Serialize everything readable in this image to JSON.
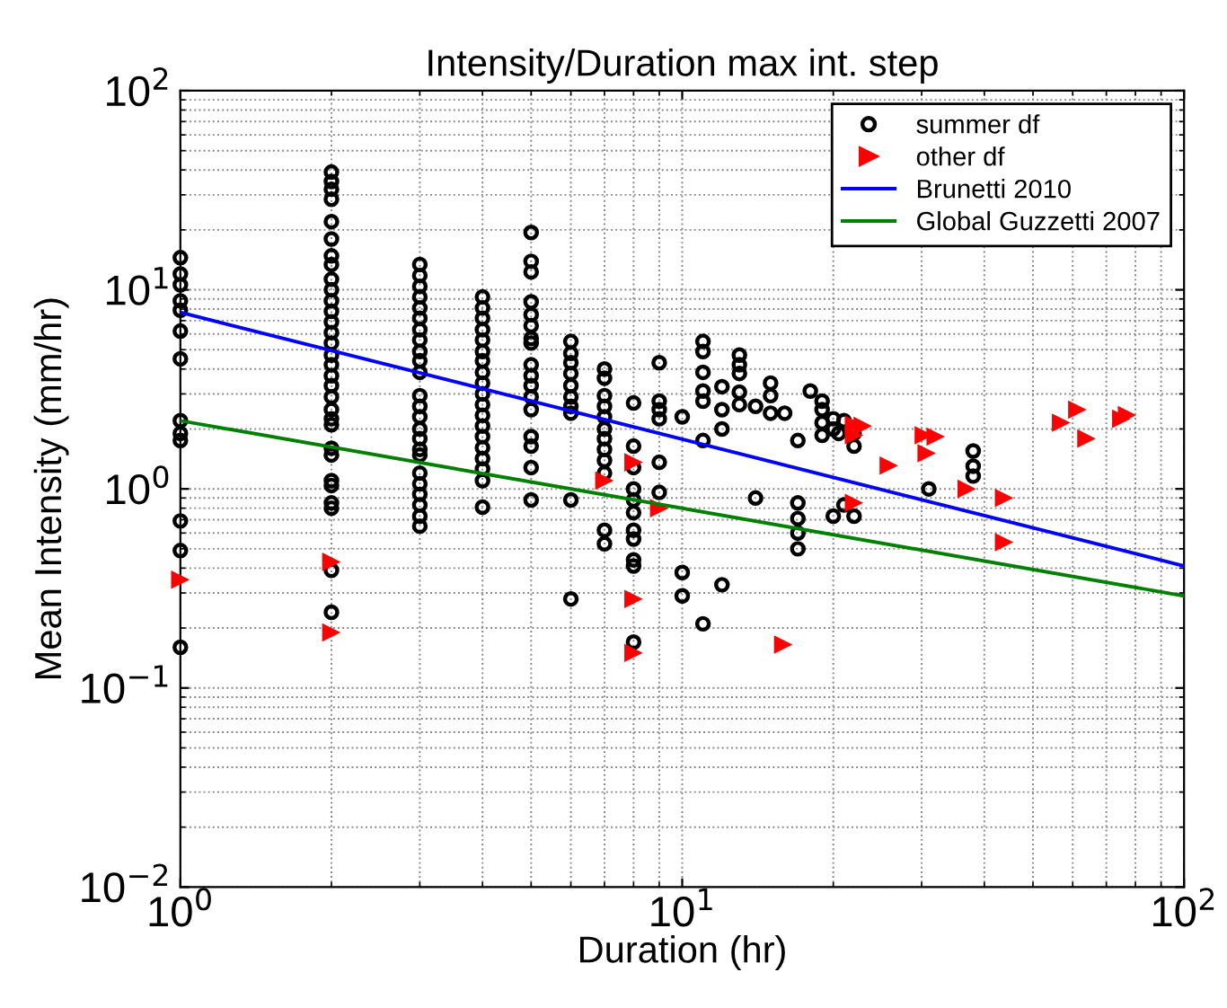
{
  "chart_data": {
    "type": "scatter",
    "title": "Intensity/Duration max int. step",
    "xlabel": "Duration (hr)",
    "ylabel": "Mean Intensity (mm/hr)",
    "log": "xy",
    "grid": true,
    "legend": "top right",
    "xlim": [
      1,
      100
    ],
    "ylim": [
      0.01,
      100
    ],
    "xticks": [
      {
        "value": 1,
        "label": "10$^{0}$"
      },
      {
        "value": 10,
        "label": "10$^{1}$"
      },
      {
        "value": 100,
        "label": "10$^{2}$"
      }
    ],
    "yticks": [
      {
        "value": 0.01,
        "label": "10$^{−2}$"
      },
      {
        "value": 0.1,
        "label": "10$^{−1}$"
      },
      {
        "value": 1,
        "label": "10$^{0}$"
      },
      {
        "value": 10,
        "label": "10$^{1}$"
      },
      {
        "value": 100,
        "label": "10$^{2}$"
      }
    ],
    "series": [
      {
        "name": "summer df",
        "marker": "circle",
        "color": "#000000",
        "x": [
          1,
          1,
          1,
          1,
          1,
          1,
          1,
          1,
          1,
          1,
          1,
          1,
          1,
          2,
          2,
          2,
          2,
          2,
          2,
          2,
          2,
          2,
          2,
          2,
          2,
          2,
          2,
          2,
          2,
          2,
          2,
          2,
          2,
          2,
          2,
          2,
          2,
          2,
          2,
          2,
          2,
          2,
          2,
          2,
          3,
          3,
          3,
          3,
          3,
          3,
          3,
          3,
          3,
          3,
          3,
          3,
          3,
          3,
          3,
          3,
          3,
          3,
          3,
          3,
          3,
          3,
          3,
          3,
          4,
          4,
          4,
          4,
          4,
          4,
          4,
          4,
          4,
          4,
          4,
          4,
          4,
          4,
          4,
          4,
          4,
          4,
          4,
          5,
          5,
          5,
          5,
          5,
          5,
          5,
          5,
          5,
          5,
          5,
          5,
          5,
          5,
          5,
          5,
          5,
          6,
          6,
          6,
          6,
          6,
          6,
          6,
          6,
          6,
          6,
          7,
          7,
          7,
          7,
          7,
          7,
          7,
          7,
          7,
          7,
          7,
          7,
          8,
          8,
          8,
          8,
          8,
          8,
          8,
          8,
          8,
          8,
          8,
          9,
          9,
          9,
          9,
          9,
          9,
          10,
          10,
          10,
          11,
          11,
          11,
          11,
          11,
          11,
          11,
          12,
          12,
          12,
          12,
          13,
          13,
          13,
          13,
          13,
          14,
          14,
          15,
          15,
          15,
          16,
          17,
          17,
          17,
          17,
          17,
          18,
          19,
          19,
          19,
          19,
          20,
          20,
          20,
          20.5,
          21,
          21,
          22,
          22,
          22,
          31,
          38,
          38,
          38
        ],
        "values": [
          14.5,
          12,
          10.6,
          7.9,
          6.2,
          4.5,
          2.2,
          1.9,
          1.75,
          0.69,
          0.49,
          0.16,
          8.8,
          39,
          35,
          32,
          28.5,
          22,
          18,
          14.8,
          13.4,
          11.3,
          10,
          8.8,
          7.8,
          6.9,
          6.1,
          5.4,
          4.7,
          4.2,
          3.7,
          3.3,
          2.9,
          2.5,
          2.25,
          2.1,
          1.48,
          1.1,
          1.04,
          0.85,
          0.8,
          0.39,
          0.24,
          1.6,
          13.4,
          11.8,
          10.4,
          9.2,
          8.1,
          7.2,
          6.3,
          5.6,
          4.9,
          4.4,
          3.85,
          2.94,
          2.6,
          2.3,
          2.0,
          1.79,
          1.58,
          1.48,
          1.2,
          1.06,
          0.94,
          0.83,
          0.73,
          0.65,
          9.2,
          8.1,
          7.2,
          6.3,
          5.6,
          4.9,
          4.4,
          3.85,
          3.4,
          3.0,
          2.65,
          2.34,
          2.07,
          1.83,
          1.61,
          1.42,
          1.26,
          1.1,
          0.81,
          19.4,
          13.9,
          12.3,
          8.7,
          7.5,
          6.6,
          5.7,
          5.4,
          4.2,
          3.7,
          3.3,
          2.9,
          2.5,
          1.83,
          1.64,
          1.28,
          0.88,
          5.5,
          4.8,
          4.3,
          3.8,
          3.3,
          2.9,
          2.6,
          2.4,
          0.88,
          0.28,
          4.0,
          3.6,
          2.94,
          2.6,
          2.3,
          2.0,
          1.79,
          1.58,
          1.39,
          1.2,
          0.62,
          0.53,
          2.7,
          1.64,
          1.28,
          1.0,
          0.88,
          0.76,
          0.62,
          0.56,
          0.44,
          0.41,
          0.17,
          4.3,
          2.76,
          2.5,
          2.25,
          1.36,
          0.96,
          2.3,
          0.38,
          0.29,
          5.5,
          4.9,
          3.85,
          3.1,
          2.76,
          1.75,
          0.21,
          3.26,
          2.5,
          2.0,
          0.33,
          4.7,
          4.2,
          3.8,
          3.06,
          2.65,
          2.6,
          0.9,
          3.4,
          2.94,
          2.4,
          2.4,
          1.75,
          0.85,
          0.71,
          0.6,
          0.5,
          3.1,
          2.76,
          2.5,
          2.15,
          1.86,
          2.0,
          2.25,
          0.73,
          1.9,
          2.2,
          0.83,
          1.9,
          1.64,
          0.73,
          1.0,
          1.55,
          1.3,
          1.16
        ]
      },
      {
        "name": "other df",
        "marker": "triangle",
        "color": "#ff0000",
        "x": [
          1,
          2,
          2,
          7,
          8,
          8,
          8,
          9,
          15.9,
          22,
          22,
          22,
          22.9,
          25.8,
          30.3,
          32,
          30.7,
          36.9,
          43.8,
          43.8,
          56.9,
          61.3,
          63.9,
          75,
          77
        ],
        "values": [
          0.35,
          0.43,
          0.19,
          1.1,
          1.36,
          0.28,
          0.15,
          0.8,
          0.165,
          2.1,
          1.86,
          0.85,
          2.07,
          1.31,
          1.86,
          1.83,
          1.51,
          1.0,
          0.9,
          0.54,
          2.15,
          2.5,
          1.79,
          2.25,
          2.35
        ]
      },
      {
        "name": "Brunetti 2010",
        "type": "line",
        "marker": "none",
        "color": "#0000ff",
        "x": [
          1,
          100
        ],
        "values": [
          7.7,
          0.41
        ]
      },
      {
        "name": "Global Guzzetti 2007",
        "type": "line",
        "marker": "none",
        "color": "#008000",
        "x": [
          1,
          100
        ],
        "values": [
          2.2,
          0.29
        ]
      }
    ]
  }
}
